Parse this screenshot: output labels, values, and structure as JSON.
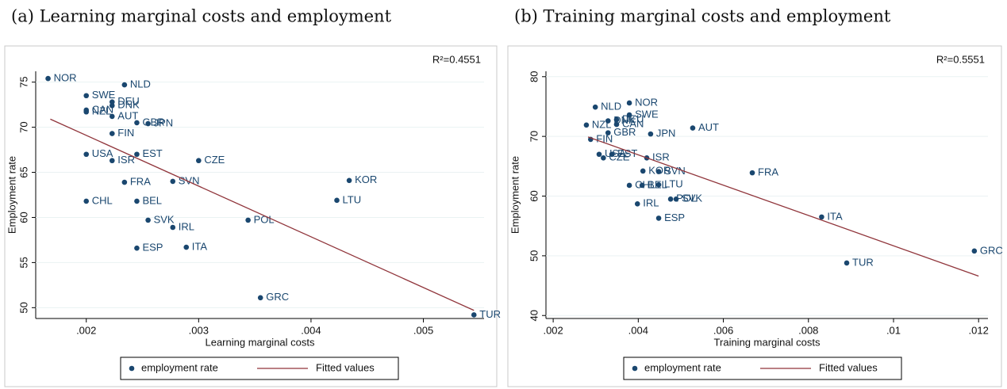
{
  "chart_data": [
    {
      "type": "scatter",
      "title": "(a) Learning marginal costs and employment",
      "x_label": "Learning marginal costs",
      "y_label": "Employment rate",
      "annotation": "R²=0.4551",
      "xlim": [
        0.00155,
        0.00554
      ],
      "ylim": [
        48.8,
        76.2
      ],
      "xticks": [
        {
          "value": 0.002,
          "label": ".002"
        },
        {
          "value": 0.003,
          "label": ".003"
        },
        {
          "value": 0.004,
          "label": ".004"
        },
        {
          "value": 0.005,
          "label": ".005"
        }
      ],
      "yticks": [
        50,
        55,
        60,
        65,
        70,
        75
      ],
      "series": [
        {
          "name": "employment rate",
          "color": "#1a476f",
          "labels": [
            "NOR",
            "SWE",
            "DEU",
            "DNK",
            "CAN",
            "NZL",
            "AUT",
            "NLD",
            "GBR",
            "JPN",
            "FIN",
            "USA",
            "ISR",
            "EST",
            "CZE",
            "FRA",
            "SVN",
            "KOR",
            "LTU",
            "CHL",
            "BEL",
            "SVK",
            "POL",
            "IRL",
            "ITA",
            "ESP",
            "GRC",
            "TUR"
          ],
          "x": [
            0.00166,
            0.002,
            0.00223,
            0.00223,
            0.002,
            0.002,
            0.00223,
            0.00234,
            0.00245,
            0.00255,
            0.00223,
            0.002,
            0.00223,
            0.00245,
            0.003,
            0.00234,
            0.00277,
            0.00434,
            0.00423,
            0.002,
            0.00245,
            0.00255,
            0.00344,
            0.00277,
            0.00289,
            0.00245,
            0.00355,
            0.00545
          ],
          "values": [
            75.4,
            73.5,
            72.8,
            72.4,
            71.9,
            71.7,
            71.2,
            74.7,
            70.5,
            70.4,
            69.3,
            67.0,
            66.3,
            67.0,
            66.3,
            63.9,
            64.0,
            64.1,
            61.9,
            61.8,
            61.8,
            59.7,
            59.7,
            58.9,
            56.7,
            56.6,
            51.1,
            49.2
          ]
        },
        {
          "name": "Fitted values",
          "color": "#90353b",
          "x": [
            0.00168,
            0.00545
          ],
          "values": [
            70.9,
            49.7
          ]
        }
      ]
    },
    {
      "type": "scatter",
      "title": "(b) Training marginal costs and employment",
      "x_label": "Training marginal costs",
      "y_label": "Employment rate",
      "annotation": "R²=0.5551",
      "xlim": [
        0.00183,
        0.01222
      ],
      "ylim": [
        39.5,
        80.9
      ],
      "xticks": [
        {
          "value": 0.002,
          "label": ".002"
        },
        {
          "value": 0.004,
          "label": ".004"
        },
        {
          "value": 0.006,
          "label": ".006"
        },
        {
          "value": 0.008,
          "label": ".008"
        },
        {
          "value": 0.01,
          "label": ".01"
        },
        {
          "value": 0.012,
          "label": ".012"
        }
      ],
      "yticks": [
        40,
        50,
        60,
        70,
        80
      ],
      "series": [
        {
          "name": "employment rate",
          "color": "#1a476f",
          "labels": [
            "NOR",
            "SWE",
            "NLD",
            "DEU",
            "DNK",
            "CAN",
            "NZL",
            "AUT",
            "JPN",
            "GBR",
            "FIN",
            "USA",
            "EST",
            "CZE",
            "ISR",
            "KOR",
            "SVN",
            "CHL",
            "BEL",
            "LTU",
            "POL",
            "SVK",
            "IRL",
            "ESP",
            "FRA",
            "ITA",
            "TUR",
            "GRC"
          ],
          "x": [
            0.00379,
            0.00379,
            0.00299,
            0.00349,
            0.00329,
            0.00349,
            0.00278,
            0.00528,
            0.00429,
            0.00329,
            0.00288,
            0.00308,
            0.00338,
            0.00318,
            0.0042,
            0.00411,
            0.00448,
            0.00379,
            0.00409,
            0.00448,
            0.00476,
            0.00489,
            0.00398,
            0.00448,
            0.00668,
            0.00831,
            0.0089,
            0.0119
          ],
          "values": [
            75.6,
            73.6,
            74.9,
            72.8,
            72.6,
            72.0,
            71.9,
            71.4,
            70.4,
            70.6,
            69.5,
            67.0,
            67.0,
            66.4,
            66.4,
            64.2,
            64.1,
            61.8,
            61.8,
            61.9,
            59.5,
            59.5,
            58.7,
            56.3,
            63.9,
            56.5,
            48.8,
            50.8
          ]
        },
        {
          "name": "Fitted values",
          "color": "#90353b",
          "x": [
            0.00282,
            0.012
          ],
          "values": [
            69.9,
            46.6
          ]
        }
      ]
    }
  ]
}
